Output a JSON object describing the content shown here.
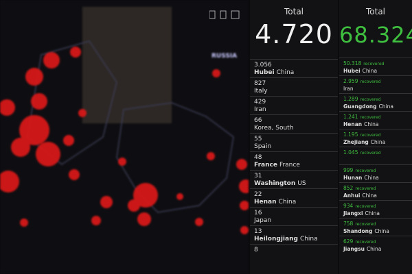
{
  "map": {
    "labels": [
      "RUSSIA"
    ]
  },
  "confirmed": {
    "title": "Total",
    "total": "4.720",
    "rows": [
      {
        "value": "3.056",
        "place": "Hubei",
        "country": "China"
      },
      {
        "value": "827",
        "country": "Italy"
      },
      {
        "value": "429",
        "country": "Iran"
      },
      {
        "value": "66",
        "country": "Korea, South"
      },
      {
        "value": "55",
        "country": "Spain"
      },
      {
        "value": "48",
        "place": "France",
        "country": "France"
      },
      {
        "value": "31",
        "place": "Washington",
        "country": "US"
      },
      {
        "value": "22",
        "place": "Henan",
        "country": "China"
      },
      {
        "value": "16",
        "country": "Japan"
      },
      {
        "value": "13",
        "place": "Heilongjiang",
        "country": "China"
      },
      {
        "value": "8"
      }
    ]
  },
  "recovered": {
    "title": "Total",
    "total": "68.324",
    "rows": [
      {
        "value": "50.318",
        "status": "recovered",
        "place": "Hubei",
        "country": "China"
      },
      {
        "value": "2.959",
        "status": "recovered",
        "country": "Iran"
      },
      {
        "value": "1.289",
        "status": "recovered",
        "place": "Guangdong",
        "country": "China"
      },
      {
        "value": "1.241",
        "status": "recovered",
        "place": "Henan",
        "country": "China"
      },
      {
        "value": "1.195",
        "status": "recovered",
        "place": "Zhejiang",
        "country": "China"
      },
      {
        "value": "1.045",
        "status": "recovered"
      },
      {
        "value": "999",
        "status": "recovered",
        "place": "Hunan",
        "country": "China"
      },
      {
        "value": "852",
        "status": "recovered",
        "place": "Anhui",
        "country": "China"
      },
      {
        "value": "934",
        "status": "recovered",
        "place": "Jiangxi",
        "country": "China"
      },
      {
        "value": "758",
        "status": "recovered",
        "place": "Shandong",
        "country": "China"
      },
      {
        "value": "629",
        "status": "recovered",
        "place": "Jiangsu",
        "country": "China"
      }
    ]
  }
}
